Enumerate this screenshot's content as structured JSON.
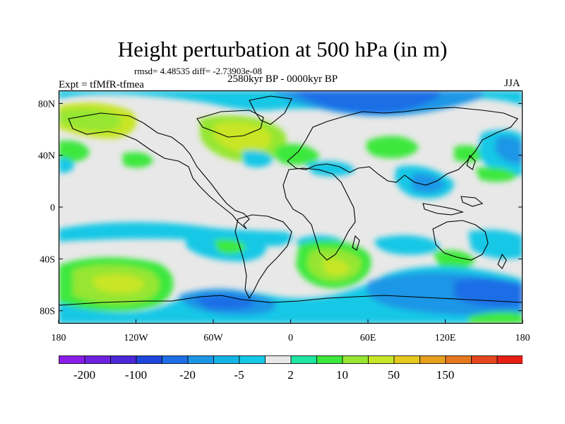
{
  "title": "Height perturbation at 500 hPa (in m)",
  "stats": "rmsd= 4.48535 diff= -2.73903e-08",
  "experiment": "Expt = tfMfR-tfmea",
  "period": "2580kyr BP - 0000kyr BP",
  "season": "JJA",
  "map": {
    "projection": "equirectangular",
    "lon_range": [
      -180,
      180
    ],
    "lat_range": [
      -90,
      90
    ],
    "lat_ticks": [
      {
        "value": 80,
        "label": "80N"
      },
      {
        "value": 40,
        "label": "40N"
      },
      {
        "value": 0,
        "label": "0"
      },
      {
        "value": -40,
        "label": "40S"
      },
      {
        "value": -80,
        "label": "80S"
      }
    ],
    "lon_ticks": [
      {
        "value": -180,
        "label": "180"
      },
      {
        "value": -120,
        "label": "120W"
      },
      {
        "value": -60,
        "label": "60W"
      },
      {
        "value": 0,
        "label": "0"
      },
      {
        "value": 60,
        "label": "60E"
      },
      {
        "value": 120,
        "label": "120E"
      },
      {
        "value": 180,
        "label": "180"
      }
    ],
    "background_color": "#e8e8e8",
    "coastline_color": "#000000"
  },
  "colorbar": {
    "colors": [
      "#8a1ee8",
      "#6e22e0",
      "#4a28d8",
      "#1e46dc",
      "#1e6ee6",
      "#1e96e6",
      "#14b4e6",
      "#14c8e6",
      "#e8e8e8",
      "#1ee6a0",
      "#3ce83c",
      "#96e632",
      "#c8e628",
      "#e6c81e",
      "#e6a01e",
      "#e6781e",
      "#e6461e",
      "#e61e14"
    ],
    "labels": [
      {
        "edge": 1,
        "label": "-200"
      },
      {
        "edge": 3,
        "label": "-100"
      },
      {
        "edge": 5,
        "label": "-20"
      },
      {
        "edge": 7,
        "label": "-5"
      },
      {
        "edge": 9,
        "label": "2"
      },
      {
        "edge": 11,
        "label": "10"
      },
      {
        "edge": 13,
        "label": "50"
      },
      {
        "edge": 15,
        "label": "150"
      }
    ]
  }
}
